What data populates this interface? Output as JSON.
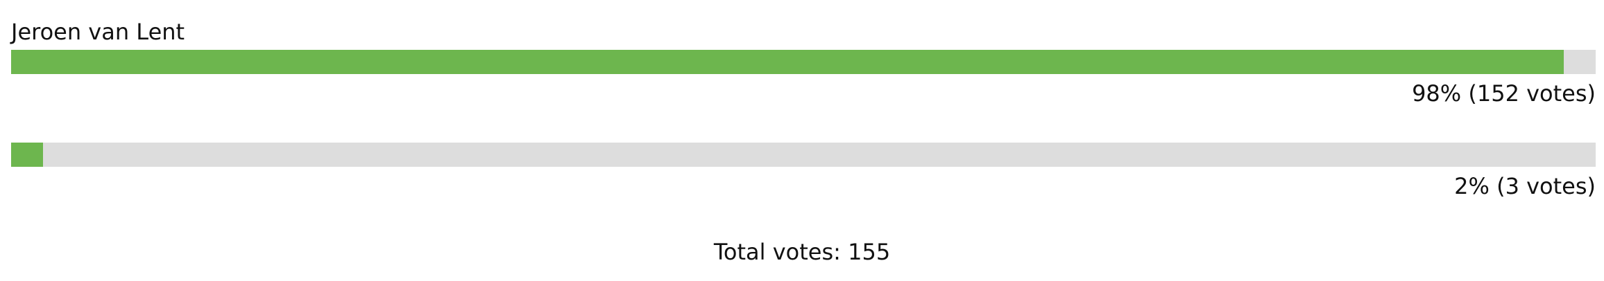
{
  "poll": {
    "options": [
      {
        "label": "Jeroen van Lent",
        "result_text": "98% (152 votes)",
        "percent": 98,
        "votes": 152
      },
      {
        "label": "",
        "result_text": "2% (3 votes)",
        "percent": 2,
        "votes": 3
      }
    ],
    "total_text": "Total votes: 155",
    "colors": {
      "fill": "#6db64e",
      "track": "#dddddd",
      "text": "#111111"
    }
  }
}
